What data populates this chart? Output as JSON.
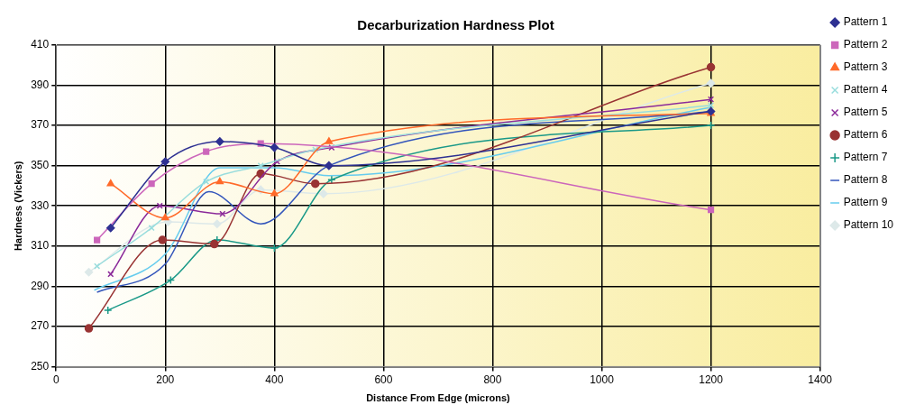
{
  "chart_data": {
    "type": "line",
    "title": "Decarburization Hardness Plot",
    "xlabel": "Distance From Edge (microns)",
    "ylabel": "Hardness (Vickers)",
    "xlim": [
      0,
      1400
    ],
    "xticks": [
      0,
      200,
      400,
      600,
      800,
      1000,
      1200,
      1400
    ],
    "ylim": [
      250,
      410
    ],
    "yticks": [
      250,
      270,
      290,
      310,
      330,
      350,
      370,
      390,
      410
    ],
    "grid": true,
    "legend": "right",
    "series": [
      {
        "name": "Pattern 1",
        "color": "#2e3192",
        "marker": "diamond",
        "x": [
          100,
          200,
          300,
          400,
          500,
          1200
        ],
        "values": [
          319,
          352,
          362,
          359,
          350,
          377
        ]
      },
      {
        "name": "Pattern 2",
        "color": "#cc66bb",
        "marker": "square",
        "x": [
          75,
          175,
          275,
          375,
          1200
        ],
        "values": [
          313,
          341,
          357,
          361,
          328
        ]
      },
      {
        "name": "Pattern 3",
        "color": "#ff6a2a",
        "marker": "triangle",
        "x": [
          100,
          200,
          300,
          400,
          500,
          1200
        ],
        "values": [
          341,
          324,
          342,
          336,
          362,
          376
        ]
      },
      {
        "name": "Pattern 4",
        "color": "#99dddd",
        "marker": "cross",
        "x": [
          75,
          175,
          275,
          375,
          475,
          1200
        ],
        "values": [
          300,
          319,
          342,
          350,
          358,
          380
        ]
      },
      {
        "name": "Pattern 5",
        "color": "#8b2a9a",
        "marker": "cross",
        "x": [
          100,
          190,
          305,
          405,
          505,
          1200
        ],
        "values": [
          296,
          330,
          326,
          352,
          359,
          383
        ]
      },
      {
        "name": "Pattern 6",
        "color": "#993333",
        "marker": "circle",
        "x": [
          60,
          195,
          290,
          375,
          475,
          1200
        ],
        "values": [
          269,
          313,
          311,
          346,
          341,
          399
        ]
      },
      {
        "name": "Pattern 7",
        "color": "#1a9988",
        "marker": "plus",
        "x": [
          95,
          210,
          295,
          400,
          505,
          1200
        ],
        "values": [
          278,
          293,
          313,
          309,
          343,
          370
        ]
      },
      {
        "name": "Pattern 8",
        "color": "#3355bb",
        "marker": "none",
        "x": [
          75,
          200,
          280,
          375,
          500,
          1200
        ],
        "values": [
          287,
          301,
          337,
          321,
          350,
          377
        ]
      },
      {
        "name": "Pattern 9",
        "color": "#66ccee",
        "marker": "none",
        "x": [
          70,
          200,
          300,
          400,
          500,
          1200
        ],
        "values": [
          288,
          306,
          349,
          349,
          345,
          379
        ]
      },
      {
        "name": "Pattern 10",
        "color": "#dde9e9",
        "marker": "diamond",
        "x": [
          60,
          205,
          295,
          375,
          490,
          1200
        ],
        "values": [
          297,
          322,
          321,
          338,
          336,
          391
        ]
      }
    ]
  }
}
